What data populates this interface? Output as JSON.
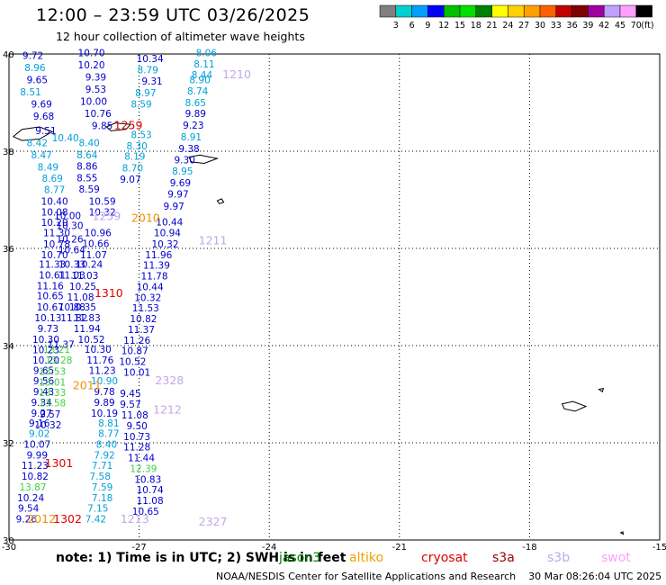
{
  "title": "12:00 – 23:59 UTC 03/26/2025",
  "subtitle": "12 hour collection of altimeter wave heights",
  "colorbar": {
    "colors": [
      "#808080",
      "#00d0d0",
      "#00a0ff",
      "#0000ff",
      "#00c000",
      "#00e000",
      "#008000",
      "#ffff00",
      "#ffd000",
      "#ffa000",
      "#ff6000",
      "#c00000",
      "#800000",
      "#a000a0",
      "#c0a0ff",
      "#ffa0ff",
      "#000000"
    ],
    "labels": [
      "3",
      "6",
      "9",
      "12",
      "15",
      "18",
      "21",
      "24",
      "27",
      "30",
      "33",
      "36",
      "39",
      "42",
      "45",
      "70"
    ],
    "unit": "(ft)"
  },
  "axes": {
    "lon_ticks": [
      "-30",
      "-27",
      "-24",
      "-21",
      "-18",
      "-15"
    ],
    "lat_ticks": [
      "40",
      "38",
      "36",
      "34",
      "32",
      "30"
    ]
  },
  "chart_data": {
    "type": "scatter",
    "xlim": [
      -30,
      -15
    ],
    "ylim": [
      30,
      40
    ],
    "points": [
      {
        "x": -29.45,
        "y": 39.9,
        "v": "9.72",
        "c": "#0000cc"
      },
      {
        "x": -28.1,
        "y": 39.95,
        "v": "10.70",
        "c": "#0000cc"
      },
      {
        "x": -29.4,
        "y": 39.65,
        "v": "8.96",
        "c": "#00a0d8"
      },
      {
        "x": -28.1,
        "y": 39.7,
        "v": "10.20",
        "c": "#0000cc"
      },
      {
        "x": -29.35,
        "y": 39.4,
        "v": "9.65",
        "c": "#0000cc"
      },
      {
        "x": -28.0,
        "y": 39.45,
        "v": "9.39",
        "c": "#0000cc"
      },
      {
        "x": -29.5,
        "y": 39.15,
        "v": "8.51",
        "c": "#00a0d8"
      },
      {
        "x": -28.0,
        "y": 39.2,
        "v": "9.53",
        "c": "#0000cc"
      },
      {
        "x": -29.25,
        "y": 38.9,
        "v": "9.69",
        "c": "#0000cc"
      },
      {
        "x": -28.05,
        "y": 38.95,
        "v": "10.00",
        "c": "#0000cc"
      },
      {
        "x": -29.2,
        "y": 38.65,
        "v": "9.68",
        "c": "#0000cc"
      },
      {
        "x": -27.95,
        "y": 38.7,
        "v": "10.76",
        "c": "#0000cc"
      },
      {
        "x": -27.85,
        "y": 38.45,
        "v": "9.85",
        "c": "#0000cc"
      },
      {
        "x": -29.15,
        "y": 38.35,
        "v": "9.51",
        "c": "#0000cc"
      },
      {
        "x": -29.35,
        "y": 38.1,
        "v": "8.42",
        "c": "#00a0d8"
      },
      {
        "x": -28.15,
        "y": 38.1,
        "v": "8.40",
        "c": "#00a0d8"
      },
      {
        "x": -29.25,
        "y": 37.85,
        "v": "8.47",
        "c": "#00a0d8"
      },
      {
        "x": -28.2,
        "y": 37.85,
        "v": "8.64",
        "c": "#00a0d8"
      },
      {
        "x": -29.1,
        "y": 37.6,
        "v": "8.49",
        "c": "#00a0d8"
      },
      {
        "x": -28.2,
        "y": 37.62,
        "v": "8.86",
        "c": "#0000cc"
      },
      {
        "x": -29.0,
        "y": 37.37,
        "v": "8.69",
        "c": "#00a0d8"
      },
      {
        "x": -28.2,
        "y": 37.38,
        "v": "8.55",
        "c": "#0000cc"
      },
      {
        "x": -28.95,
        "y": 37.14,
        "v": "8.77",
        "c": "#00a0d8"
      },
      {
        "x": -28.15,
        "y": 37.15,
        "v": "8.59",
        "c": "#0000cc"
      },
      {
        "x": -28.95,
        "y": 36.9,
        "v": "10.40",
        "c": "#0000cc"
      },
      {
        "x": -28.95,
        "y": 36.68,
        "v": "10.08",
        "c": "#0000cc"
      },
      {
        "x": -28.95,
        "y": 36.46,
        "v": "10.20",
        "c": "#0000cc"
      },
      {
        "x": -28.9,
        "y": 36.25,
        "v": "11.30",
        "c": "#0000cc"
      },
      {
        "x": -28.9,
        "y": 36.02,
        "v": "10.78",
        "c": "#0000cc"
      },
      {
        "x": -28.95,
        "y": 35.8,
        "v": "10.70",
        "c": "#0000cc"
      },
      {
        "x": -29.0,
        "y": 35.6,
        "v": "11.33",
        "c": "#0000cc"
      },
      {
        "x": -29.0,
        "y": 35.38,
        "v": "10.61",
        "c": "#0000cc"
      },
      {
        "x": -29.05,
        "y": 35.16,
        "v": "11.16",
        "c": "#0000cc"
      },
      {
        "x": -29.05,
        "y": 34.95,
        "v": "10.65",
        "c": "#0000cc"
      },
      {
        "x": -29.05,
        "y": 34.72,
        "v": "10.67",
        "c": "#0000cc"
      },
      {
        "x": -29.1,
        "y": 34.5,
        "v": "10.13",
        "c": "#0000cc"
      },
      {
        "x": -29.1,
        "y": 34.28,
        "v": "9.73",
        "c": "#0000cc"
      },
      {
        "x": -29.15,
        "y": 34.06,
        "v": "10.30",
        "c": "#0000cc"
      },
      {
        "x": -29.15,
        "y": 33.84,
        "v": "10.23",
        "c": "#0000cc"
      },
      {
        "x": -29.15,
        "y": 33.63,
        "v": "10.20",
        "c": "#0000cc"
      },
      {
        "x": -29.2,
        "y": 33.42,
        "v": "9.65",
        "c": "#0000cc"
      },
      {
        "x": -29.2,
        "y": 33.2,
        "v": "9.56",
        "c": "#0000cc"
      },
      {
        "x": -29.2,
        "y": 32.98,
        "v": "9.43",
        "c": "#0000cc"
      },
      {
        "x": -29.25,
        "y": 32.76,
        "v": "9.34",
        "c": "#0000cc"
      },
      {
        "x": -29.25,
        "y": 32.54,
        "v": "9.27",
        "c": "#0000cc"
      },
      {
        "x": -29.3,
        "y": 32.33,
        "v": "9.16",
        "c": "#0000cc"
      },
      {
        "x": -29.3,
        "y": 32.12,
        "v": "9.02",
        "c": "#00a0d8"
      },
      {
        "x": -29.35,
        "y": 31.9,
        "v": "10.07",
        "c": "#0000cc"
      },
      {
        "x": -29.35,
        "y": 31.68,
        "v": "9.99",
        "c": "#0000cc"
      },
      {
        "x": -29.4,
        "y": 31.46,
        "v": "11.23",
        "c": "#0000cc"
      },
      {
        "x": -29.4,
        "y": 31.24,
        "v": "10.82",
        "c": "#0000cc"
      },
      {
        "x": -29.45,
        "y": 31.02,
        "v": "13.87",
        "c": "#40d040"
      },
      {
        "x": -29.5,
        "y": 30.8,
        "v": "10.24",
        "c": "#0000cc"
      },
      {
        "x": -29.55,
        "y": 30.58,
        "v": "9.54",
        "c": "#0000cc"
      },
      {
        "x": -29.6,
        "y": 30.36,
        "v": "9.26",
        "c": "#0000cc"
      },
      {
        "x": -27.85,
        "y": 36.9,
        "v": "10.59",
        "c": "#0000cc"
      },
      {
        "x": -27.85,
        "y": 36.68,
        "v": "10.32",
        "c": "#0000cc"
      },
      {
        "x": -27.95,
        "y": 36.25,
        "v": "10.96",
        "c": "#0000cc"
      },
      {
        "x": -28.0,
        "y": 36.03,
        "v": "10.66",
        "c": "#0000cc"
      },
      {
        "x": -28.05,
        "y": 35.8,
        "v": "11.07",
        "c": "#0000cc"
      },
      {
        "x": -28.15,
        "y": 35.6,
        "v": "10.24",
        "c": "#0000cc"
      },
      {
        "x": -28.25,
        "y": 35.37,
        "v": "11.03",
        "c": "#0000cc"
      },
      {
        "x": -28.3,
        "y": 35.15,
        "v": "10.25",
        "c": "#0000cc"
      },
      {
        "x": -28.35,
        "y": 34.93,
        "v": "11.08",
        "c": "#0000cc"
      },
      {
        "x": -28.3,
        "y": 34.72,
        "v": "10.35",
        "c": "#0000cc"
      },
      {
        "x": -28.2,
        "y": 34.5,
        "v": "11.83",
        "c": "#0000cc"
      },
      {
        "x": -28.2,
        "y": 34.28,
        "v": "11.94",
        "c": "#0000cc"
      },
      {
        "x": -28.1,
        "y": 34.06,
        "v": "10.52",
        "c": "#0000cc"
      },
      {
        "x": -27.95,
        "y": 33.85,
        "v": "10.30",
        "c": "#0000cc"
      },
      {
        "x": -27.9,
        "y": 33.63,
        "v": "11.76",
        "c": "#0000cc"
      },
      {
        "x": -27.85,
        "y": 33.42,
        "v": "11.23",
        "c": "#0000cc"
      },
      {
        "x": -27.8,
        "y": 33.2,
        "v": "10.90",
        "c": "#00a0d8"
      },
      {
        "x": -27.8,
        "y": 32.98,
        "v": "9.78",
        "c": "#0000cc"
      },
      {
        "x": -27.8,
        "y": 32.76,
        "v": "9.89",
        "c": "#0000cc"
      },
      {
        "x": -27.8,
        "y": 32.54,
        "v": "10.19",
        "c": "#0000cc"
      },
      {
        "x": -27.7,
        "y": 32.33,
        "v": "8.81",
        "c": "#00a0d8"
      },
      {
        "x": -27.7,
        "y": 32.12,
        "v": "8.77",
        "c": "#00a0d8"
      },
      {
        "x": -27.75,
        "y": 31.9,
        "v": "8.40",
        "c": "#00a0d8"
      },
      {
        "x": -27.8,
        "y": 31.68,
        "v": "7.92",
        "c": "#00a0d8"
      },
      {
        "x": -27.85,
        "y": 31.46,
        "v": "7.71",
        "c": "#00a0d8"
      },
      {
        "x": -27.9,
        "y": 31.24,
        "v": "7.58",
        "c": "#00a0d8"
      },
      {
        "x": -27.85,
        "y": 31.02,
        "v": "7.59",
        "c": "#00a0d8"
      },
      {
        "x": -27.85,
        "y": 30.8,
        "v": "7.18",
        "c": "#00a0d8"
      },
      {
        "x": -27.95,
        "y": 30.58,
        "v": "7.15",
        "c": "#00a0d8"
      },
      {
        "x": -28.0,
        "y": 30.36,
        "v": "7.42",
        "c": "#00a0d8"
      },
      {
        "x": -26.95,
        "y": 38.27,
        "v": "8.53",
        "c": "#00a0d8"
      },
      {
        "x": -27.05,
        "y": 38.04,
        "v": "8.30",
        "c": "#00a0d8"
      },
      {
        "x": -27.1,
        "y": 37.82,
        "v": "8.19",
        "c": "#00a0d8"
      },
      {
        "x": -27.15,
        "y": 37.58,
        "v": "8.70",
        "c": "#00a0d8"
      },
      {
        "x": -27.2,
        "y": 37.35,
        "v": "9.07",
        "c": "#0000cc"
      },
      {
        "x": -26.3,
        "y": 36.47,
        "v": "10.44",
        "c": "#0000cc"
      },
      {
        "x": -26.35,
        "y": 36.25,
        "v": "10.94",
        "c": "#0000cc"
      },
      {
        "x": -26.4,
        "y": 36.02,
        "v": "10.32",
        "c": "#0000cc"
      },
      {
        "x": -26.55,
        "y": 35.8,
        "v": "11.96",
        "c": "#0000cc"
      },
      {
        "x": -26.6,
        "y": 35.58,
        "v": "11.39",
        "c": "#0000cc"
      },
      {
        "x": -26.65,
        "y": 35.36,
        "v": "11.78",
        "c": "#0000cc"
      },
      {
        "x": -26.75,
        "y": 35.14,
        "v": "10.44",
        "c": "#0000cc"
      },
      {
        "x": -26.8,
        "y": 34.92,
        "v": "10.32",
        "c": "#0000cc"
      },
      {
        "x": -26.85,
        "y": 34.7,
        "v": "11.53",
        "c": "#0000cc"
      },
      {
        "x": -26.9,
        "y": 34.48,
        "v": "10.82",
        "c": "#0000cc"
      },
      {
        "x": -26.95,
        "y": 34.26,
        "v": "11.37",
        "c": "#0000cc"
      },
      {
        "x": -27.05,
        "y": 34.04,
        "v": "11.26",
        "c": "#0000cc"
      },
      {
        "x": -27.1,
        "y": 33.82,
        "v": "10.87",
        "c": "#0000cc"
      },
      {
        "x": -27.15,
        "y": 33.6,
        "v": "10.52",
        "c": "#0000cc"
      },
      {
        "x": -27.05,
        "y": 33.38,
        "v": "10.01",
        "c": "#0000cc"
      },
      {
        "x": -27.2,
        "y": 32.94,
        "v": "9.45",
        "c": "#0000cc"
      },
      {
        "x": -27.2,
        "y": 32.72,
        "v": "9.57",
        "c": "#0000cc"
      },
      {
        "x": -27.1,
        "y": 32.5,
        "v": "11.08",
        "c": "#0000cc"
      },
      {
        "x": -27.05,
        "y": 32.28,
        "v": "9.50",
        "c": "#0000cc"
      },
      {
        "x": -27.05,
        "y": 32.06,
        "v": "10.73",
        "c": "#0000cc"
      },
      {
        "x": -27.05,
        "y": 31.84,
        "v": "11.28",
        "c": "#0000cc"
      },
      {
        "x": -26.95,
        "y": 31.62,
        "v": "11.44",
        "c": "#0000cc"
      },
      {
        "x": -26.9,
        "y": 31.4,
        "v": "12.39",
        "c": "#40d040"
      },
      {
        "x": -26.8,
        "y": 31.18,
        "v": "10.83",
        "c": "#0000cc"
      },
      {
        "x": -26.75,
        "y": 30.96,
        "v": "10.74",
        "c": "#0000cc"
      },
      {
        "x": -26.75,
        "y": 30.74,
        "v": "11.08",
        "c": "#0000cc"
      },
      {
        "x": -26.85,
        "y": 30.52,
        "v": "10.65",
        "c": "#0000cc"
      },
      {
        "x": -26.75,
        "y": 39.83,
        "v": "10.34",
        "c": "#0000cc"
      },
      {
        "x": -26.8,
        "y": 39.6,
        "v": "8.79",
        "c": "#00a0d8"
      },
      {
        "x": -26.7,
        "y": 39.37,
        "v": "9.31",
        "c": "#0000cc"
      },
      {
        "x": -26.85,
        "y": 39.13,
        "v": "8.97",
        "c": "#00a0d8"
      },
      {
        "x": -26.95,
        "y": 38.9,
        "v": "8.59",
        "c": "#00a0d8"
      },
      {
        "x": -25.45,
        "y": 39.95,
        "v": "8.06",
        "c": "#00a0d8"
      },
      {
        "x": -25.5,
        "y": 39.72,
        "v": "8.11",
        "c": "#00a0d8"
      },
      {
        "x": -25.55,
        "y": 39.5,
        "v": "8.44",
        "c": "#00a0d8"
      },
      {
        "x": -25.6,
        "y": 39.4,
        "v": "8.90",
        "c": "#00a0d8"
      },
      {
        "x": -25.65,
        "y": 39.17,
        "v": "8.74",
        "c": "#00a0d8"
      },
      {
        "x": -25.7,
        "y": 38.93,
        "v": "8.65",
        "c": "#00a0d8"
      },
      {
        "x": -25.7,
        "y": 38.7,
        "v": "9.89",
        "c": "#0000cc"
      },
      {
        "x": -25.75,
        "y": 38.46,
        "v": "9.23",
        "c": "#0000cc"
      },
      {
        "x": -25.8,
        "y": 38.22,
        "v": "8.91",
        "c": "#00a0d8"
      },
      {
        "x": -25.85,
        "y": 37.98,
        "v": "9.38",
        "c": "#0000cc"
      },
      {
        "x": -25.95,
        "y": 37.75,
        "v": "9.30",
        "c": "#0000cc"
      },
      {
        "x": -26.0,
        "y": 37.52,
        "v": "8.95",
        "c": "#00a0d8"
      },
      {
        "x": -26.05,
        "y": 37.28,
        "v": "9.69",
        "c": "#0000cc"
      },
      {
        "x": -26.1,
        "y": 37.05,
        "v": "9.97",
        "c": "#0000cc"
      },
      {
        "x": -26.2,
        "y": 36.8,
        "v": "9.97",
        "c": "#0000cc"
      },
      {
        "x": -28.8,
        "y": 33.95,
        "v": "11.37",
        "c": "#0000cc"
      },
      {
        "x": -28.9,
        "y": 33.85,
        "v": "13.21",
        "c": "#40d040"
      },
      {
        "x": -28.85,
        "y": 33.63,
        "v": "13.28",
        "c": "#40d040"
      },
      {
        "x": -29.0,
        "y": 33.4,
        "v": "13.53",
        "c": "#40d040"
      },
      {
        "x": -29.0,
        "y": 33.18,
        "v": "13.01",
        "c": "#40d040"
      },
      {
        "x": -29.0,
        "y": 32.96,
        "v": "13.33",
        "c": "#40d040"
      },
      {
        "x": -29.0,
        "y": 32.75,
        "v": "13.58",
        "c": "#40d040"
      },
      {
        "x": -29.05,
        "y": 32.52,
        "v": "9.57",
        "c": "#0000cc"
      },
      {
        "x": -29.1,
        "y": 32.3,
        "v": "10.32",
        "c": "#0000cc"
      },
      {
        "x": -28.5,
        "y": 34.5,
        "v": "11.82",
        "c": "#0000cc"
      },
      {
        "x": -28.55,
        "y": 34.72,
        "v": "10.88",
        "c": "#0000cc"
      },
      {
        "x": -28.55,
        "y": 35.38,
        "v": "11.03",
        "c": "#0000cc"
      },
      {
        "x": -28.55,
        "y": 35.6,
        "v": "10.33",
        "c": "#0000cc"
      },
      {
        "x": -28.55,
        "y": 35.9,
        "v": "10.64",
        "c": "#0000cc"
      },
      {
        "x": -28.6,
        "y": 36.12,
        "v": "10.26",
        "c": "#0000cc"
      },
      {
        "x": -28.6,
        "y": 36.4,
        "v": "10.30",
        "c": "#0000cc"
      },
      {
        "x": -28.65,
        "y": 36.6,
        "v": "10.00",
        "c": "#0000cc"
      },
      {
        "x": -28.7,
        "y": 38.2,
        "v": "10.40",
        "c": "#00a0d8"
      }
    ],
    "track_labels": [
      {
        "x": -27.25,
        "y": 38.45,
        "t": "1259",
        "c": "#e00000"
      },
      {
        "x": -24.75,
        "y": 39.5,
        "t": "1210",
        "c": "#c0a8e8"
      },
      {
        "x": -26.85,
        "y": 36.55,
        "t": "2010",
        "c": "#f09000"
      },
      {
        "x": -27.75,
        "y": 36.58,
        "t": "1259",
        "c": "#c0a8e8"
      },
      {
        "x": -25.3,
        "y": 36.08,
        "t": "1211",
        "c": "#c0a8e8"
      },
      {
        "x": -27.7,
        "y": 35.0,
        "t": "1310",
        "c": "#e00000"
      },
      {
        "x": -28.2,
        "y": 33.1,
        "t": "2011",
        "c": "#f09000"
      },
      {
        "x": -26.3,
        "y": 33.2,
        "t": "2328",
        "c": "#c0a8e8"
      },
      {
        "x": -26.35,
        "y": 32.6,
        "t": "1212",
        "c": "#c0a8e8"
      },
      {
        "x": -28.85,
        "y": 31.5,
        "t": "1301",
        "c": "#e00000"
      },
      {
        "x": -29.25,
        "y": 30.35,
        "t": "2012",
        "c": "#f09000"
      },
      {
        "x": -28.65,
        "y": 30.35,
        "t": "1302",
        "c": "#e00000"
      },
      {
        "x": -27.1,
        "y": 30.35,
        "t": "1213",
        "c": "#c0a8e8"
      },
      {
        "x": -25.3,
        "y": 30.3,
        "t": "2327",
        "c": "#c0a8e8"
      }
    ]
  },
  "note": "note:  1) Time is in UTC;  2) SWH is in feet",
  "legend": [
    {
      "name": "jason3",
      "color": "#008000"
    },
    {
      "name": "altiko",
      "color": "#f0a000"
    },
    {
      "name": "cryosat",
      "color": "#e00000"
    },
    {
      "name": "s3a",
      "color": "#a00000"
    },
    {
      "name": "s3b",
      "color": "#c0a8e8"
    },
    {
      "name": "swot",
      "color": "#ffa0ff"
    }
  ],
  "footer": "NOAA/NESDIS Center for Satellite Applications and Research    30 Mar 08:26:04 UTC 2025"
}
